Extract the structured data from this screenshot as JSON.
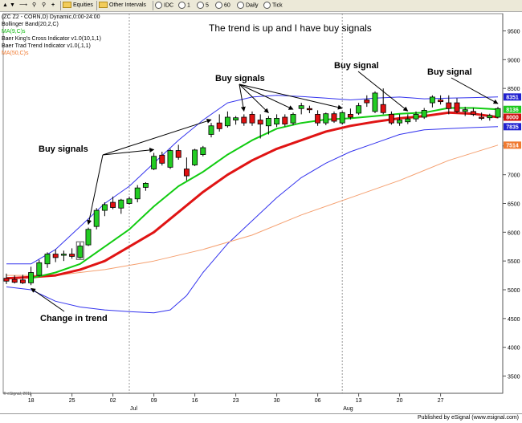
{
  "toolbar": {
    "items": [
      "Equities",
      "Other Intervals",
      "IDC",
      "1",
      "5",
      "60",
      "Daily",
      "Tick"
    ]
  },
  "legend": {
    "symbol_line": "(ZC Z2 - CORN,D) Dynamic,0:00-24:00",
    "bollinger": "Bollinger Band(20,2,C)",
    "ma9": "MA(9,C)s",
    "cross": "Baer King's Cross Indicator v1.0(10,1,1)",
    "trend": "Baer Trad Trend Indicator v1.0(,1,1)",
    "ma50": "MA(50,C)s"
  },
  "footer": "Published by eSignal (www.esignal.com)",
  "copyright": "© eSignal, 2011",
  "chart_data": {
    "type": "candlestick",
    "title": "The trend is up and I have buy signals",
    "ylim": [
      3200,
      9800
    ],
    "y_ticks": [
      3500,
      4000,
      4500,
      5000,
      5500,
      6000,
      6500,
      7000,
      7500,
      8000,
      8500,
      9000,
      9500
    ],
    "x_tick_labels": [
      "18",
      "25",
      "02",
      "09",
      "16",
      "23",
      "30",
      "06",
      "13",
      "20",
      "27"
    ],
    "month_labels": [
      "Jul",
      "Aug"
    ],
    "last_value_badges": [
      {
        "value": "8351",
        "color": "#2020d0"
      },
      {
        "value": "8136",
        "color": "#1ec81e"
      },
      {
        "value": "8000",
        "color": "#d01010"
      },
      {
        "value": "7835",
        "color": "#2020d0"
      },
      {
        "value": "7514",
        "color": "#f07a30"
      }
    ],
    "series_colors": {
      "up": "#22cc22",
      "down": "#e01010",
      "ma9": "#11cc11",
      "ma20_red": "#e01414",
      "bollinger": "#3333ee",
      "ma50": "#f5a070"
    },
    "candles": [
      {
        "o": 5200,
        "h": 5280,
        "l": 5100,
        "c": 5150
      },
      {
        "o": 5180,
        "h": 5250,
        "l": 5110,
        "c": 5130
      },
      {
        "o": 5170,
        "h": 5260,
        "l": 5100,
        "c": 5120
      },
      {
        "o": 5120,
        "h": 5400,
        "l": 5080,
        "c": 5300
      },
      {
        "o": 5250,
        "h": 5520,
        "l": 5230,
        "c": 5470
      },
      {
        "o": 5450,
        "h": 5650,
        "l": 5380,
        "c": 5620
      },
      {
        "o": 5620,
        "h": 5700,
        "l": 5480,
        "c": 5560
      },
      {
        "o": 5600,
        "h": 5680,
        "l": 5500,
        "c": 5620
      },
      {
        "o": 5620,
        "h": 5720,
        "l": 5540,
        "c": 5580
      },
      {
        "o": 5560,
        "h": 5820,
        "l": 5540,
        "c": 5760
      },
      {
        "o": 5780,
        "h": 6080,
        "l": 5760,
        "c": 6050
      },
      {
        "o": 6100,
        "h": 6420,
        "l": 6050,
        "c": 6380
      },
      {
        "o": 6380,
        "h": 6520,
        "l": 6280,
        "c": 6480
      },
      {
        "o": 6520,
        "h": 6620,
        "l": 6400,
        "c": 6430
      },
      {
        "o": 6420,
        "h": 6580,
        "l": 6320,
        "c": 6560
      },
      {
        "o": 6500,
        "h": 6620,
        "l": 6480,
        "c": 6580
      },
      {
        "o": 6580,
        "h": 6820,
        "l": 6520,
        "c": 6770
      },
      {
        "o": 6780,
        "h": 6870,
        "l": 6720,
        "c": 6850
      },
      {
        "o": 7100,
        "h": 7380,
        "l": 7080,
        "c": 7320
      },
      {
        "o": 7340,
        "h": 7400,
        "l": 7160,
        "c": 7200
      },
      {
        "o": 7130,
        "h": 7450,
        "l": 7100,
        "c": 7420
      },
      {
        "o": 7420,
        "h": 7520,
        "l": 7260,
        "c": 7300
      },
      {
        "o": 7100,
        "h": 7300,
        "l": 6900,
        "c": 6980
      },
      {
        "o": 7170,
        "h": 7450,
        "l": 7150,
        "c": 7430
      },
      {
        "o": 7350,
        "h": 7500,
        "l": 7320,
        "c": 7470
      },
      {
        "o": 7700,
        "h": 7900,
        "l": 7650,
        "c": 7850
      },
      {
        "o": 7900,
        "h": 8050,
        "l": 7750,
        "c": 7800
      },
      {
        "o": 7850,
        "h": 8100,
        "l": 7820,
        "c": 8000
      },
      {
        "o": 7950,
        "h": 8020,
        "l": 7870,
        "c": 7990
      },
      {
        "o": 8000,
        "h": 8050,
        "l": 7850,
        "c": 7900
      },
      {
        "o": 8050,
        "h": 8100,
        "l": 7850,
        "c": 7900
      },
      {
        "o": 7950,
        "h": 8050,
        "l": 7630,
        "c": 7880
      },
      {
        "o": 7850,
        "h": 8020,
        "l": 7700,
        "c": 7980
      },
      {
        "o": 7880,
        "h": 8050,
        "l": 7830,
        "c": 7980
      },
      {
        "o": 8000,
        "h": 8050,
        "l": 7840,
        "c": 7880
      },
      {
        "o": 7900,
        "h": 8080,
        "l": 7860,
        "c": 8050
      },
      {
        "o": 8150,
        "h": 8250,
        "l": 8050,
        "c": 8200
      },
      {
        "o": 8150,
        "h": 8200,
        "l": 8070,
        "c": 8130
      },
      {
        "o": 8050,
        "h": 8120,
        "l": 7850,
        "c": 7900
      },
      {
        "o": 7900,
        "h": 8080,
        "l": 7860,
        "c": 8060
      },
      {
        "o": 8060,
        "h": 8100,
        "l": 7900,
        "c": 7930
      },
      {
        "o": 7900,
        "h": 8100,
        "l": 7870,
        "c": 8080
      },
      {
        "o": 8050,
        "h": 8150,
        "l": 7960,
        "c": 8000
      },
      {
        "o": 8070,
        "h": 8250,
        "l": 8040,
        "c": 8200
      },
      {
        "o": 8300,
        "h": 8380,
        "l": 8180,
        "c": 8250
      },
      {
        "o": 8100,
        "h": 8450,
        "l": 8070,
        "c": 8420
      },
      {
        "o": 8220,
        "h": 8500,
        "l": 8050,
        "c": 8080
      },
      {
        "o": 8050,
        "h": 8100,
        "l": 7870,
        "c": 7900
      },
      {
        "o": 7900,
        "h": 8050,
        "l": 7850,
        "c": 7950
      },
      {
        "o": 7920,
        "h": 8050,
        "l": 7880,
        "c": 7970
      },
      {
        "o": 7970,
        "h": 8100,
        "l": 7920,
        "c": 8050
      },
      {
        "o": 8000,
        "h": 8160,
        "l": 7970,
        "c": 8120
      },
      {
        "o": 8250,
        "h": 8380,
        "l": 8170,
        "c": 8350
      },
      {
        "o": 8300,
        "h": 8380,
        "l": 8220,
        "c": 8270
      },
      {
        "o": 8250,
        "h": 8380,
        "l": 8050,
        "c": 8150
      },
      {
        "o": 8250,
        "h": 8330,
        "l": 8070,
        "c": 8100
      },
      {
        "o": 8100,
        "h": 8180,
        "l": 8020,
        "c": 8130
      },
      {
        "o": 8100,
        "h": 8160,
        "l": 8020,
        "c": 8050
      },
      {
        "o": 8000,
        "h": 8080,
        "l": 7950,
        "c": 7990
      },
      {
        "o": 7990,
        "h": 8060,
        "l": 7940,
        "c": 8030
      },
      {
        "o": 8000,
        "h": 8180,
        "l": 7980,
        "c": 8150
      }
    ],
    "lines": {
      "ma9": [
        {
          "i": 3,
          "v": 5200
        },
        {
          "i": 6,
          "v": 5300
        },
        {
          "i": 9,
          "v": 5450
        },
        {
          "i": 12,
          "v": 5750
        },
        {
          "i": 15,
          "v": 6050
        },
        {
          "i": 18,
          "v": 6450
        },
        {
          "i": 21,
          "v": 6800
        },
        {
          "i": 24,
          "v": 7050
        },
        {
          "i": 27,
          "v": 7350
        },
        {
          "i": 30,
          "v": 7600
        },
        {
          "i": 33,
          "v": 7800
        },
        {
          "i": 36,
          "v": 7900
        },
        {
          "i": 39,
          "v": 7960
        },
        {
          "i": 42,
          "v": 7980
        },
        {
          "i": 45,
          "v": 8020
        },
        {
          "i": 48,
          "v": 8060
        },
        {
          "i": 51,
          "v": 8080
        },
        {
          "i": 54,
          "v": 8160
        },
        {
          "i": 57,
          "v": 8160
        },
        {
          "i": 60,
          "v": 8136
        }
      ],
      "ma20": [
        {
          "i": 0,
          "v": 5200
        },
        {
          "i": 3,
          "v": 5220
        },
        {
          "i": 6,
          "v": 5250
        },
        {
          "i": 9,
          "v": 5350
        },
        {
          "i": 12,
          "v": 5500
        },
        {
          "i": 15,
          "v": 5750
        },
        {
          "i": 18,
          "v": 6000
        },
        {
          "i": 21,
          "v": 6350
        },
        {
          "i": 24,
          "v": 6700
        },
        {
          "i": 27,
          "v": 7000
        },
        {
          "i": 30,
          "v": 7250
        },
        {
          "i": 33,
          "v": 7450
        },
        {
          "i": 36,
          "v": 7600
        },
        {
          "i": 39,
          "v": 7750
        },
        {
          "i": 42,
          "v": 7850
        },
        {
          "i": 45,
          "v": 7920
        },
        {
          "i": 48,
          "v": 7980
        },
        {
          "i": 51,
          "v": 8020
        },
        {
          "i": 54,
          "v": 8080
        },
        {
          "i": 57,
          "v": 8060
        },
        {
          "i": 60,
          "v": 8000
        }
      ],
      "bb_upper": [
        {
          "i": 0,
          "v": 5450
        },
        {
          "i": 3,
          "v": 5450
        },
        {
          "i": 6,
          "v": 5700
        },
        {
          "i": 9,
          "v": 6100
        },
        {
          "i": 12,
          "v": 6500
        },
        {
          "i": 15,
          "v": 6800
        },
        {
          "i": 18,
          "v": 7200
        },
        {
          "i": 21,
          "v": 7600
        },
        {
          "i": 24,
          "v": 7950
        },
        {
          "i": 27,
          "v": 8250
        },
        {
          "i": 30,
          "v": 8350
        },
        {
          "i": 33,
          "v": 8380
        },
        {
          "i": 36,
          "v": 8360
        },
        {
          "i": 39,
          "v": 8330
        },
        {
          "i": 42,
          "v": 8300
        },
        {
          "i": 45,
          "v": 8330
        },
        {
          "i": 48,
          "v": 8350
        },
        {
          "i": 51,
          "v": 8320
        },
        {
          "i": 54,
          "v": 8330
        },
        {
          "i": 57,
          "v": 8340
        },
        {
          "i": 60,
          "v": 8351
        }
      ],
      "bb_lower": [
        {
          "i": 0,
          "v": 5050
        },
        {
          "i": 3,
          "v": 5000
        },
        {
          "i": 6,
          "v": 4800
        },
        {
          "i": 9,
          "v": 4700
        },
        {
          "i": 12,
          "v": 4650
        },
        {
          "i": 15,
          "v": 4620
        },
        {
          "i": 18,
          "v": 4600
        },
        {
          "i": 20,
          "v": 4650
        },
        {
          "i": 22,
          "v": 4900
        },
        {
          "i": 24,
          "v": 5300
        },
        {
          "i": 27,
          "v": 5800
        },
        {
          "i": 30,
          "v": 6200
        },
        {
          "i": 33,
          "v": 6600
        },
        {
          "i": 36,
          "v": 6950
        },
        {
          "i": 39,
          "v": 7200
        },
        {
          "i": 42,
          "v": 7400
        },
        {
          "i": 45,
          "v": 7550
        },
        {
          "i": 48,
          "v": 7700
        },
        {
          "i": 51,
          "v": 7780
        },
        {
          "i": 54,
          "v": 7800
        },
        {
          "i": 57,
          "v": 7820
        },
        {
          "i": 60,
          "v": 7835
        }
      ],
      "ma50": [
        {
          "i": 0,
          "v": 5250
        },
        {
          "i": 6,
          "v": 5250
        },
        {
          "i": 12,
          "v": 5350
        },
        {
          "i": 18,
          "v": 5500
        },
        {
          "i": 24,
          "v": 5700
        },
        {
          "i": 30,
          "v": 5950
        },
        {
          "i": 36,
          "v": 6300
        },
        {
          "i": 42,
          "v": 6600
        },
        {
          "i": 48,
          "v": 6900
        },
        {
          "i": 54,
          "v": 7250
        },
        {
          "i": 60,
          "v": 7514
        }
      ]
    },
    "annotations": [
      {
        "text": "Buy signals",
        "arrows_to": [
          10,
          18,
          25
        ]
      },
      {
        "text": "Buy signals",
        "arrows_to": [
          29,
          32,
          35,
          41
        ]
      },
      {
        "text": "Buy signal",
        "arrows_to": [
          49
        ]
      },
      {
        "text": "Buy signal",
        "arrows_to": [
          60
        ]
      },
      {
        "text": "Change in trend",
        "arrows_to": [
          3
        ]
      }
    ],
    "signal_boxes": [
      9
    ]
  }
}
